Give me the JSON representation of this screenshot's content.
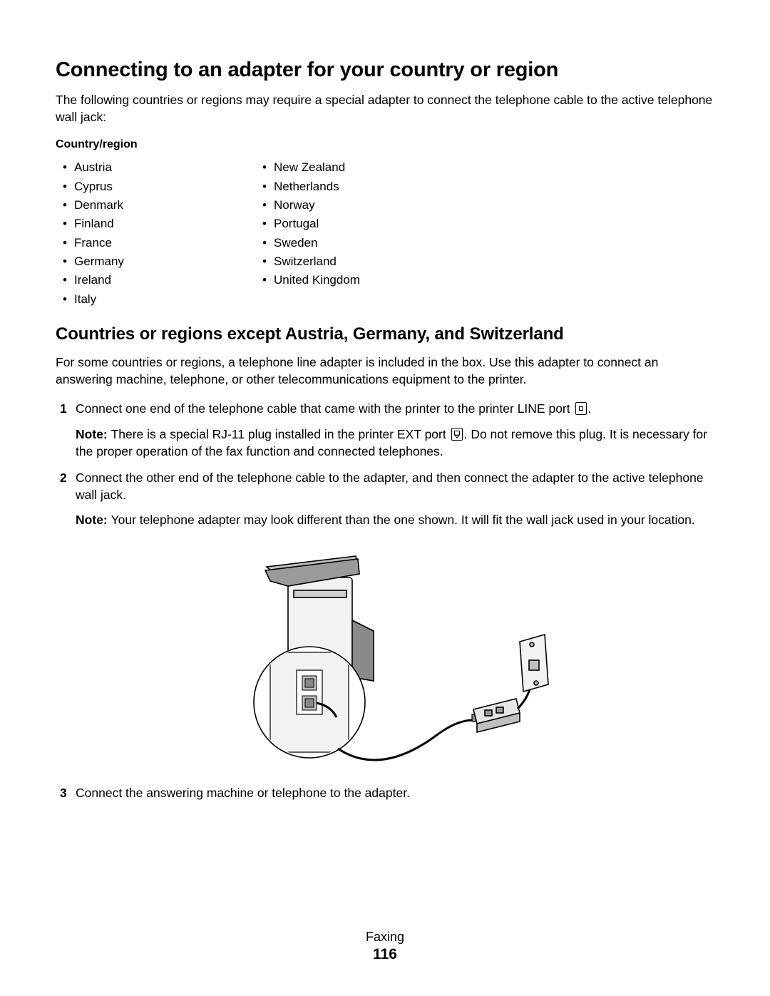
{
  "heading": "Connecting to an adapter for your country or region",
  "intro": "The following countries or regions may require a special adapter to connect the telephone cable to the active telephone wall jack:",
  "countries_heading": "Country/region",
  "countries_col1": [
    "Austria",
    "Cyprus",
    "Denmark",
    "Finland",
    "France",
    "Germany",
    "Ireland",
    "Italy"
  ],
  "countries_col2": [
    "New Zealand",
    "Netherlands",
    "Norway",
    "Portugal",
    "Sweden",
    "Switzerland",
    "United Kingdom"
  ],
  "subheading": "Countries or regions except Austria, Germany, and Switzerland",
  "sub_intro": "For some countries or regions, a telephone line adapter is included in the box. Use this adapter to connect an answering machine, telephone, or other telecommunications equipment to the printer.",
  "steps": {
    "s1_a": "Connect one end of the telephone cable that came with the printer to the printer LINE port ",
    "s1_b": ".",
    "s1_note_label": "Note: ",
    "s1_note_a": "There is a special RJ-11 plug installed in the printer EXT port ",
    "s1_note_b": ". Do not remove this plug. It is necessary for the proper operation of the fax function and connected telephones.",
    "s2": "Connect the other end of the telephone cable to the adapter, and then connect the adapter to the active telephone wall jack.",
    "s2_note_label": "Note: ",
    "s2_note": "Your telephone adapter may look different than the one shown. It will fit the wall jack used in your location.",
    "s3": "Connect the answering machine or telephone to the adapter."
  },
  "footer": {
    "section": "Faxing",
    "page": "116"
  },
  "figure": {
    "type": "diagram",
    "description": "printer-with-cable-to-adapter-and-wall-jack",
    "colors": {
      "stroke": "#000000",
      "fill_light": "#e6e6e6",
      "fill_mid": "#bfbfbf",
      "fill_dark": "#8a8a8a",
      "background": "#ffffff"
    },
    "line_width": 1.6
  }
}
